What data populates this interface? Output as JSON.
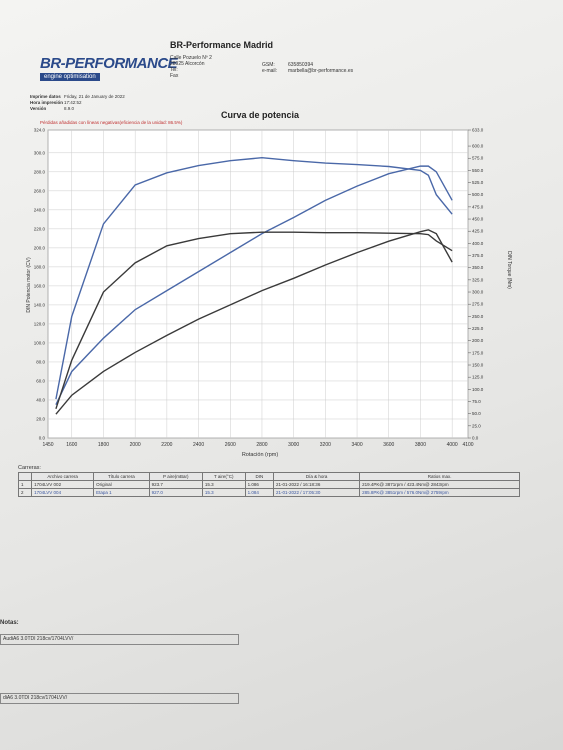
{
  "header": {
    "logo": "BR-PERFORMANCE",
    "tagline": "engine optimisation",
    "company": "BR-Performance Madrid",
    "address": [
      "Calle Pozuelo Nº 2",
      "28925 Alcorcón",
      "Tel:",
      "Fax"
    ],
    "contact": [
      [
        "GSM:",
        "635850394"
      ],
      [
        "e-mail:",
        "marbella@br-performance.es"
      ]
    ]
  },
  "info": [
    [
      "Imprime datos",
      "Friday, 21 de January de 2022"
    ],
    [
      "Hora impresión",
      "17:42:52"
    ],
    [
      "Versión",
      "8.9.0"
    ]
  ],
  "chart_data": {
    "type": "line",
    "title": "Curva de potencia",
    "subtitle": "Pérdidas añadidas con líneas negativas(eficiencia de la unidad: 86.5%)",
    "x_label": "Rotación (rpm)",
    "y_label": "DIN Potencia motor (CV)",
    "y2_label": "DIN Torque (Nm)",
    "x": [
      1500,
      1600,
      1800,
      2000,
      2200,
      2400,
      2600,
      2800,
      3000,
      3200,
      3400,
      3600,
      3800,
      3850,
      3900,
      4000
    ],
    "xlim": [
      1450,
      4100
    ],
    "xticks": [
      1450,
      1600,
      1800,
      2000,
      2200,
      2400,
      2600,
      2800,
      3000,
      3200,
      3400,
      3600,
      3800,
      4000,
      4100
    ],
    "ylim": [
      0,
      324
    ],
    "yticks": [
      {
        "value": 0,
        "label": "0.0"
      },
      {
        "value": 20,
        "label": "20.0"
      },
      {
        "value": 40,
        "label": "40.0"
      },
      {
        "value": 60,
        "label": "60.0"
      },
      {
        "value": 80,
        "label": "80.0"
      },
      {
        "value": 100,
        "label": "100.0"
      },
      {
        "value": 120,
        "label": "120.0"
      },
      {
        "value": 140,
        "label": "140.0"
      },
      {
        "value": 160,
        "label": "160.0"
      },
      {
        "value": 180,
        "label": "180.0"
      },
      {
        "value": 200,
        "label": "200.0"
      },
      {
        "value": 220,
        "label": "220.0"
      },
      {
        "value": 240,
        "label": "240.0"
      },
      {
        "value": 260,
        "label": "260.0"
      },
      {
        "value": 280,
        "label": "280.0"
      },
      {
        "value": 300,
        "label": "300.0"
      },
      {
        "value": 324,
        "label": "324.0"
      }
    ],
    "y2lim": [
      0,
      633
    ],
    "y2ticks": [
      {
        "value": 0,
        "label": "0.0"
      },
      {
        "value": 25,
        "label": "25.0"
      },
      {
        "value": 50,
        "label": "50.0"
      },
      {
        "value": 75,
        "label": "75.0"
      },
      {
        "value": 100,
        "label": "100.0"
      },
      {
        "value": 125,
        "label": "125.0"
      },
      {
        "value": 150,
        "label": "150.0"
      },
      {
        "value": 175,
        "label": "175.0"
      },
      {
        "value": 200,
        "label": "200.0"
      },
      {
        "value": 225,
        "label": "225.0"
      },
      {
        "value": 250,
        "label": "250.0"
      },
      {
        "value": 275,
        "label": "275.0"
      },
      {
        "value": 300,
        "label": "300.0"
      },
      {
        "value": 325,
        "label": "325.0"
      },
      {
        "value": 350,
        "label": "350.0"
      },
      {
        "value": 375,
        "label": "375.0"
      },
      {
        "value": 400,
        "label": "400.0"
      },
      {
        "value": 425,
        "label": "425.0"
      },
      {
        "value": 450,
        "label": "450.0"
      },
      {
        "value": 475,
        "label": "475.0"
      },
      {
        "value": 500,
        "label": "500.0"
      },
      {
        "value": 525,
        "label": "525.0"
      },
      {
        "value": 550,
        "label": "550.0"
      },
      {
        "value": 575,
        "label": "575.0"
      },
      {
        "value": 600,
        "label": "600.0"
      },
      {
        "value": 633,
        "label": "633.0"
      }
    ],
    "grid": true,
    "series": [
      {
        "color": "#4a68a8",
        "values": [
          35,
          70,
          105,
          135,
          155,
          175,
          195,
          215,
          232,
          250,
          265,
          278,
          286,
          286,
          280,
          250
        ]
      },
      {
        "color": "#3a3a3a",
        "values": [
          25,
          45,
          70,
          90,
          108,
          125,
          140,
          155,
          168,
          182,
          195,
          207,
          217,
          219,
          215,
          185
        ]
      },
      {
        "color": "#4a68a8",
        "axis": "y2",
        "values": [
          80,
          250,
          440,
          520,
          545,
          560,
          570,
          576,
          570,
          565,
          562,
          558,
          550,
          540,
          500,
          460
        ]
      },
      {
        "color": "#3a3a3a",
        "axis": "y2",
        "values": [
          60,
          160,
          300,
          360,
          395,
          410,
          420,
          423,
          423,
          422,
          422,
          421,
          420,
          418,
          405,
          385
        ]
      }
    ]
  },
  "table": {
    "title": "Carreras:",
    "columns": [
      "Archivo carrera",
      "Título carrera",
      "P aire(mBar)",
      "T aire(°C)",
      "DIN",
      "Día & hora",
      "Ratios max."
    ],
    "rows": [
      [
        "1",
        "1704LVV 002",
        "Original",
        "923.7",
        "15.3",
        "1.086",
        "21-01-2022 / 16:18:36",
        "219.4PK@ 3871rpm / 423.4Nm@ 2843rpm"
      ],
      [
        "2",
        "1704LVV 004",
        "Etapa 1",
        "927.0",
        "15.3",
        "1.084",
        "21-01-2022 / 17:05:30",
        "285.8PK@ 3851rpm / 576.0Nm@ 2759rpm"
      ]
    ]
  },
  "notes": {
    "title": "Notas:",
    "lines": [
      "AudiA6 3.0TDI 218cv/1704LVV/",
      "diA6 3.0TDI 218cv/1704LVV/"
    ]
  }
}
